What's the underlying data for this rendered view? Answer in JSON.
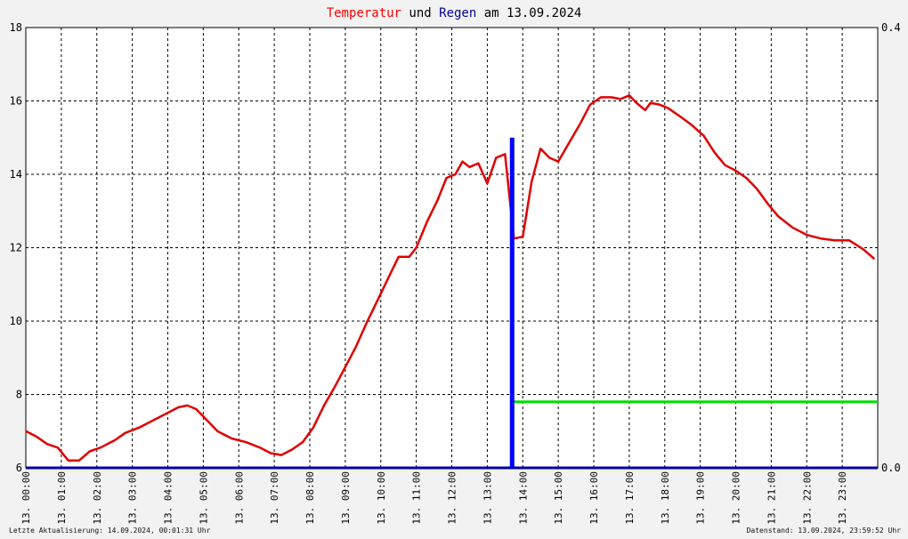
{
  "title": {
    "part1": "Temperatur",
    "part2": " und ",
    "part3": "Regen",
    "part4": " am 13.09.2024",
    "color1": "#ff0000",
    "color2": "#000000",
    "color3": "#000099",
    "color4": "#000000"
  },
  "footer": {
    "left": "Letzte Aktualisierung: 14.09.2024, 00:01:31 Uhr",
    "right": "Datenstand: 13.09.2024, 23:59:52 Uhr"
  },
  "chart_data": {
    "type": "line",
    "title": "Temperatur und Regen am 13.09.2024",
    "grid": true,
    "x_unit": "hours",
    "xlim": [
      0,
      24
    ],
    "x_tick_labels": [
      "13. 00:00",
      "13. 01:00",
      "13. 02:00",
      "13. 03:00",
      "13. 04:00",
      "13. 05:00",
      "13. 06:00",
      "13. 07:00",
      "13. 08:00",
      "13. 09:00",
      "13. 10:00",
      "13. 11:00",
      "13. 12:00",
      "13. 13:00",
      "13. 14:00",
      "13. 15:00",
      "13. 16:00",
      "13. 17:00",
      "13. 18:00",
      "13. 19:00",
      "13. 20:00",
      "13. 21:00",
      "13. 22:00",
      "13. 23:00"
    ],
    "y_left": {
      "lim": [
        6,
        18
      ],
      "ticks": [
        "6",
        "8",
        "10",
        "12",
        "14",
        "16",
        "18"
      ]
    },
    "y_right": {
      "lim": [
        0,
        0.4
      ],
      "ticks": [
        "0.0",
        "0.4"
      ]
    },
    "series": [
      {
        "color": "#e00000",
        "axis": "left",
        "x": [
          0,
          0.3,
          0.6,
          0.9,
          1.2,
          1.5,
          1.8,
          2.1,
          2.5,
          2.8,
          3.2,
          3.6,
          4.0,
          4.3,
          4.55,
          4.8,
          5.1,
          5.4,
          5.8,
          6.2,
          6.6,
          6.9,
          7.2,
          7.5,
          7.8,
          8.1,
          8.4,
          8.7,
          9.0,
          9.3,
          9.6,
          9.9,
          10.2,
          10.5,
          10.8,
          11.0,
          11.3,
          11.6,
          11.85,
          12.1,
          12.3,
          12.5,
          12.75,
          13.0,
          13.25,
          13.5,
          13.75,
          14.0,
          14.25,
          14.5,
          14.75,
          15.0,
          15.3,
          15.6,
          15.9,
          16.2,
          16.5,
          16.75,
          17.0,
          17.2,
          17.45,
          17.6,
          17.85,
          18.1,
          18.4,
          18.75,
          19.1,
          19.4,
          19.7,
          20.0,
          20.3,
          20.6,
          20.9,
          21.2,
          21.6,
          22.0,
          22.4,
          22.8,
          23.2,
          23.6,
          23.9
        ],
        "values": [
          7.0,
          6.85,
          6.65,
          6.55,
          6.2,
          6.2,
          6.45,
          6.55,
          6.75,
          6.95,
          7.1,
          7.3,
          7.5,
          7.65,
          7.7,
          7.6,
          7.3,
          7.0,
          6.8,
          6.7,
          6.55,
          6.4,
          6.35,
          6.5,
          6.7,
          7.1,
          7.7,
          8.2,
          8.75,
          9.3,
          9.95,
          10.55,
          11.15,
          11.75,
          11.75,
          12.0,
          12.7,
          13.3,
          13.9,
          14.0,
          14.35,
          14.2,
          14.3,
          13.75,
          14.45,
          14.55,
          12.25,
          12.3,
          13.8,
          14.7,
          14.45,
          14.35,
          14.85,
          15.35,
          15.9,
          16.1,
          16.1,
          16.05,
          16.15,
          15.95,
          15.75,
          15.95,
          15.9,
          15.8,
          15.6,
          15.35,
          15.05,
          14.6,
          14.25,
          14.1,
          13.9,
          13.6,
          13.2,
          12.85,
          12.55,
          12.35,
          12.25,
          12.2,
          12.2,
          11.95,
          11.7
        ]
      },
      {
        "color": "#00e000",
        "axis": "left",
        "x": [
          13.75,
          24
        ],
        "values": [
          7.8,
          7.8
        ]
      },
      {
        "color": "#0000ff",
        "axis": "right",
        "type": "bar",
        "x": [
          13.7
        ],
        "values": [
          0.3
        ]
      },
      {
        "color": "#0000aa",
        "axis": "right",
        "x": [
          0,
          24
        ],
        "values": [
          0,
          0
        ]
      }
    ]
  }
}
